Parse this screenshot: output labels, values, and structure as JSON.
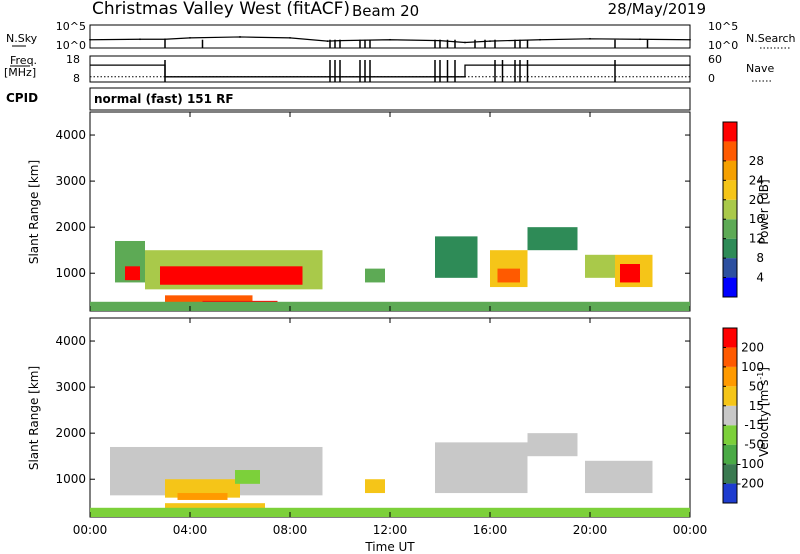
{
  "header": {
    "station": "Christmas Valley West (fitACF)",
    "beam": "Beam 20",
    "date": "28/May/2019",
    "cpid_label": "CPID",
    "cpid_value": "normal (fast) 151 RF"
  },
  "chart_data": [
    {
      "type": "line",
      "name": "noise-panel",
      "left_label": "N.Sky",
      "right_label": "N.Search",
      "left_ticks": [
        "10^5",
        "10^0"
      ],
      "right_ticks": [
        "10^5",
        "10^0"
      ],
      "x": [
        0,
        2,
        3,
        4,
        6,
        8,
        9.5,
        10,
        12,
        14,
        15,
        16,
        18,
        20,
        22,
        24
      ],
      "y": [
        1.8,
        1.9,
        1.9,
        2.2,
        2.4,
        2.2,
        1.5,
        1.6,
        1.8,
        1.6,
        1.2,
        1.5,
        1.8,
        2.0,
        1.9,
        1.8
      ],
      "dropouts": [
        3.0,
        4.5,
        9.6,
        9.8,
        10.0,
        10.8,
        11.0,
        11.2,
        13.8,
        14.0,
        14.3,
        14.6,
        15.4,
        15.8,
        16.2,
        17.0,
        17.2,
        17.5,
        21.0,
        22.3
      ]
    },
    {
      "type": "line",
      "name": "frequency-panel",
      "left_label": "Freq.",
      "left_unit": "[MHz]",
      "left_ticks": [
        "18",
        "8"
      ],
      "right_label": "Nave",
      "right_ticks": [
        "60",
        "0"
      ],
      "freq_steps": [
        {
          "x0": 0,
          "x1": 3,
          "y": 14.5
        },
        {
          "x0": 3,
          "x1": 15,
          "y": 10
        },
        {
          "x0": 15,
          "x1": 24,
          "y": 14.5
        }
      ],
      "nave_level": 12,
      "dropouts": [
        3.0,
        9.6,
        9.8,
        10.0,
        10.8,
        11.0,
        11.2,
        13.8,
        14.0,
        14.3,
        14.6,
        16.2,
        16.5,
        17.0,
        17.2,
        17.5,
        21.0
      ]
    },
    {
      "type": "heatmap",
      "name": "power-panel",
      "ylabel": "Slant Range [km]",
      "ylim": [
        180,
        4500
      ],
      "yticks": [
        1000,
        2000,
        3000,
        4000
      ],
      "colorbar_label": "Power [dB]",
      "colorbar_ticks": [
        "4",
        "8",
        "12",
        "16",
        "20",
        "24",
        "28"
      ],
      "colors": [
        "#0000ff",
        "#2d50a0",
        "#2e8b57",
        "#5daa55",
        "#a9c94a",
        "#f5c518",
        "#f5a000",
        "#ff5a00",
        "#ff0000"
      ],
      "regions": [
        {
          "x0": 1.0,
          "x1": 2.2,
          "r0": 800,
          "r1": 1700,
          "level": 3
        },
        {
          "x0": 1.4,
          "x1": 2.0,
          "r0": 850,
          "r1": 1150,
          "level": 8
        },
        {
          "x0": 2.2,
          "x1": 9.3,
          "r0": 650,
          "r1": 1500,
          "level": 4
        },
        {
          "x0": 2.8,
          "x1": 8.5,
          "r0": 750,
          "r1": 1150,
          "level": 8
        },
        {
          "x0": 3.0,
          "x1": 6.5,
          "r0": 300,
          "r1": 520,
          "level": 7
        },
        {
          "x0": 4.5,
          "x1": 7.5,
          "r0": 250,
          "r1": 400,
          "level": 8
        },
        {
          "x0": 11.0,
          "x1": 11.8,
          "r0": 800,
          "r1": 1100,
          "level": 3
        },
        {
          "x0": 13.8,
          "x1": 15.5,
          "r0": 900,
          "r1": 1800,
          "level": 2
        },
        {
          "x0": 16.0,
          "x1": 17.5,
          "r0": 700,
          "r1": 1500,
          "level": 5
        },
        {
          "x0": 16.3,
          "x1": 17.2,
          "r0": 800,
          "r1": 1100,
          "level": 7
        },
        {
          "x0": 17.5,
          "x1": 19.5,
          "r0": 1500,
          "r1": 2000,
          "level": 2
        },
        {
          "x0": 19.8,
          "x1": 21.0,
          "r0": 900,
          "r1": 1400,
          "level": 4
        },
        {
          "x0": 21.0,
          "x1": 22.5,
          "r0": 700,
          "r1": 1400,
          "level": 5
        },
        {
          "x0": 21.2,
          "x1": 22.0,
          "r0": 800,
          "r1": 1200,
          "level": 8
        },
        {
          "x0": 0.0,
          "x1": 24.0,
          "r0": 180,
          "r1": 380,
          "level": 3
        }
      ]
    },
    {
      "type": "heatmap",
      "name": "velocity-panel",
      "xlabel": "Time UT",
      "xlim": [
        0,
        24
      ],
      "xticks": [
        "00:00",
        "04:00",
        "08:00",
        "12:00",
        "16:00",
        "20:00",
        "00:00"
      ],
      "ylabel": "Slant Range [km]",
      "ylim": [
        180,
        4500
      ],
      "yticks": [
        1000,
        2000,
        3000,
        4000
      ],
      "colorbar_label": "Velocity [m s",
      "colorbar_sup": "-1",
      "colorbar_ticks": [
        "200",
        "100",
        "50",
        "15",
        "-15",
        "-50",
        "-100",
        "-200"
      ],
      "colors": [
        "#1e3ccf",
        "#3a7a50",
        "#4aaa45",
        "#7cd03a",
        "#c8c8c8",
        "#f5c518",
        "#ff9a00",
        "#ff5a00",
        "#ff0000"
      ],
      "regions": [
        {
          "x0": 0.8,
          "x1": 9.3,
          "r0": 650,
          "r1": 1700,
          "level": 4
        },
        {
          "x0": 3.0,
          "x1": 6.0,
          "r0": 600,
          "r1": 1000,
          "level": 5
        },
        {
          "x0": 3.5,
          "x1": 5.5,
          "r0": 550,
          "r1": 700,
          "level": 6
        },
        {
          "x0": 3.0,
          "x1": 7.0,
          "r0": 280,
          "r1": 480,
          "level": 5
        },
        {
          "x0": 5.8,
          "x1": 6.8,
          "r0": 900,
          "r1": 1200,
          "level": 3
        },
        {
          "x0": 11.0,
          "x1": 11.8,
          "r0": 700,
          "r1": 1000,
          "level": 5
        },
        {
          "x0": 13.8,
          "x1": 17.5,
          "r0": 700,
          "r1": 1800,
          "level": 4
        },
        {
          "x0": 17.5,
          "x1": 19.5,
          "r0": 1500,
          "r1": 2000,
          "level": 4
        },
        {
          "x0": 19.8,
          "x1": 22.5,
          "r0": 700,
          "r1": 1400,
          "level": 4
        },
        {
          "x0": 0.0,
          "x1": 24.0,
          "r0": 180,
          "r1": 380,
          "level": 3
        }
      ]
    }
  ]
}
